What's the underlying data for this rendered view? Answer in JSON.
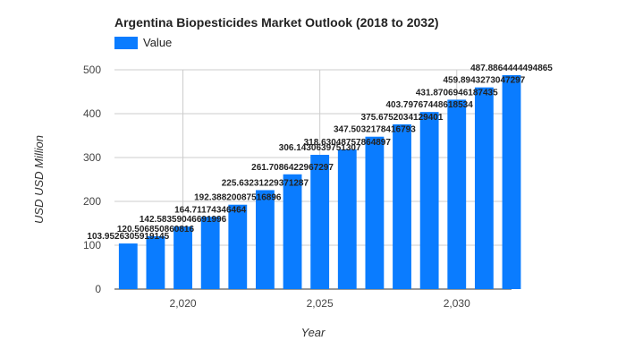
{
  "chart_data": {
    "type": "bar",
    "title": "Argentina Biopesticides Market Outlook (2018 to 2032)",
    "xlabel": "Year",
    "ylabel": "USD USD Million",
    "legend": {
      "position": "top-left",
      "entries": [
        "Value"
      ]
    },
    "grid": true,
    "ylim": [
      0,
      500
    ],
    "yticks": [
      "0",
      "100",
      "200",
      "300",
      "400",
      "500"
    ],
    "xticks": [
      {
        "value": 2020,
        "label": "2,020"
      },
      {
        "value": 2025,
        "label": "2,025"
      },
      {
        "value": 2030,
        "label": "2,030"
      }
    ],
    "x": [
      2018,
      2019,
      2020,
      2021,
      2022,
      2023,
      2024,
      2025,
      2026,
      2027,
      2028,
      2029,
      2030,
      2031,
      2032
    ],
    "series": [
      {
        "name": "Value",
        "color": "#0a7cff",
        "values": [
          103.9526,
          120.5069,
          142.5836,
          164.7117,
          192.3882,
          225.6323,
          261.7086,
          306.1431,
          318.6305,
          347.5032,
          375.6752,
          403.7977,
          431.8707,
          459.8943,
          487.8864
        ],
        "labels": [
          "103.9526305919145",
          "120.506850860816",
          "142.58359046691996",
          "164.71174346464",
          "192.38820087516896",
          "225.63231229371287",
          "261.7086422967297",
          "306.1430639751307",
          "318.63048757864897",
          "347.5032178416793",
          "375.6752034129401",
          "403.79767448618534",
          "431.8706946187435",
          "459.8943273047297",
          "487.8864444494865"
        ]
      }
    ]
  }
}
